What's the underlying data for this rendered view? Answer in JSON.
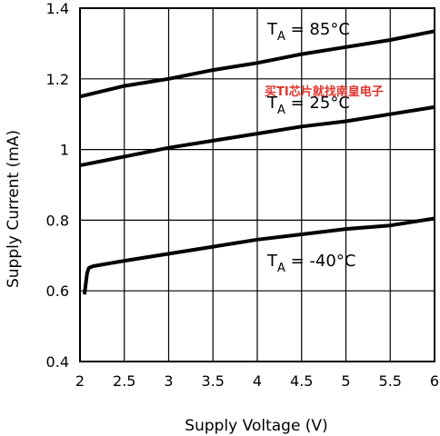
{
  "chart_data": {
    "type": "line",
    "title": "",
    "xlabel": "Supply Voltage (V)",
    "ylabel": "Supply Current (mA)",
    "xlim": [
      2,
      6
    ],
    "ylim": [
      0.4,
      1.4
    ],
    "grid": true,
    "x_ticks": [
      "2",
      "2.5",
      "3",
      "3.5",
      "4",
      "4.5",
      "5",
      "5.5",
      "6"
    ],
    "y_ticks": [
      "0.4",
      "0.6",
      "0.8",
      "1",
      "1.2",
      "1.4"
    ],
    "series": [
      {
        "label_main": "T",
        "label_sub": "A",
        "label_rest": " = 85°C",
        "line_color": "#000000",
        "x": [
          2.0,
          2.5,
          3.0,
          3.5,
          4.0,
          4.5,
          5.0,
          5.5,
          6.0
        ],
        "y": [
          1.15,
          1.18,
          1.2,
          1.225,
          1.245,
          1.27,
          1.29,
          1.31,
          1.335
        ]
      },
      {
        "label_main": "T",
        "label_sub": "A",
        "label_rest": " = 25°C",
        "line_color": "#000000",
        "x": [
          2.0,
          2.5,
          3.0,
          3.5,
          4.0,
          4.5,
          5.0,
          5.5,
          6.0
        ],
        "y": [
          0.955,
          0.98,
          1.005,
          1.025,
          1.045,
          1.065,
          1.08,
          1.1,
          1.12
        ]
      },
      {
        "label_main": "T",
        "label_sub": "A",
        "label_rest": " = -40°C",
        "line_color": "#000000",
        "x": [
          2.05,
          2.06,
          2.08,
          2.1,
          2.15,
          2.5,
          3.0,
          3.5,
          4.0,
          4.5,
          5.0,
          5.5,
          6.0
        ],
        "y": [
          0.59,
          0.61,
          0.65,
          0.665,
          0.67,
          0.685,
          0.705,
          0.725,
          0.745,
          0.76,
          0.775,
          0.785,
          0.805
        ]
      }
    ]
  },
  "watermark": {
    "text": "买TI芯片就找南皇电子",
    "color": "#e0322b"
  }
}
